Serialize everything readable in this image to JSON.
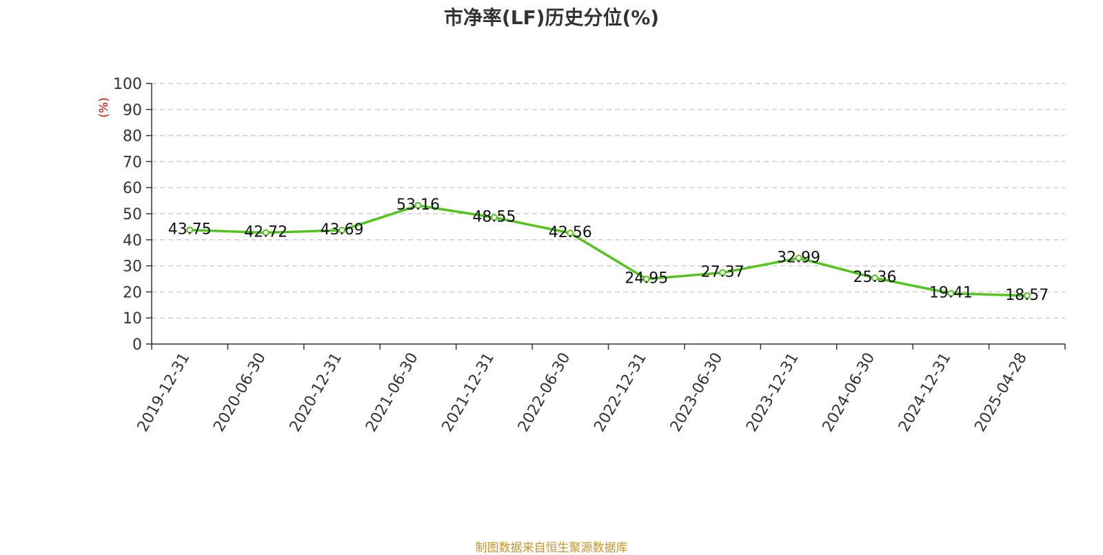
{
  "chart_data": {
    "type": "line",
    "title": "市净率(LF)历史分位(%)",
    "ylabel": "(%)",
    "xlabel": "",
    "ylim": [
      0,
      100
    ],
    "yticks": [
      0,
      10,
      20,
      30,
      40,
      50,
      60,
      70,
      80,
      90,
      100
    ],
    "grid": true,
    "categories": [
      "2019-12-31",
      "2020-06-30",
      "2020-12-31",
      "2021-06-30",
      "2021-12-31",
      "2022-06-30",
      "2022-12-31",
      "2023-06-30",
      "2023-12-31",
      "2024-06-30",
      "2024-12-31",
      "2025-04-28"
    ],
    "series": [
      {
        "values": [
          43.75,
          42.72,
          43.69,
          53.16,
          48.55,
          42.56,
          24.95,
          27.37,
          32.99,
          25.36,
          19.41,
          18.57
        ],
        "color": "#52c41a"
      }
    ]
  },
  "source_note": "制图数据来自恒生聚源数据库",
  "colors": {
    "title": "#333333",
    "ylabel": "#e00000",
    "source": "#c8952c",
    "grid": "#cccccc",
    "axis": "#333333"
  }
}
